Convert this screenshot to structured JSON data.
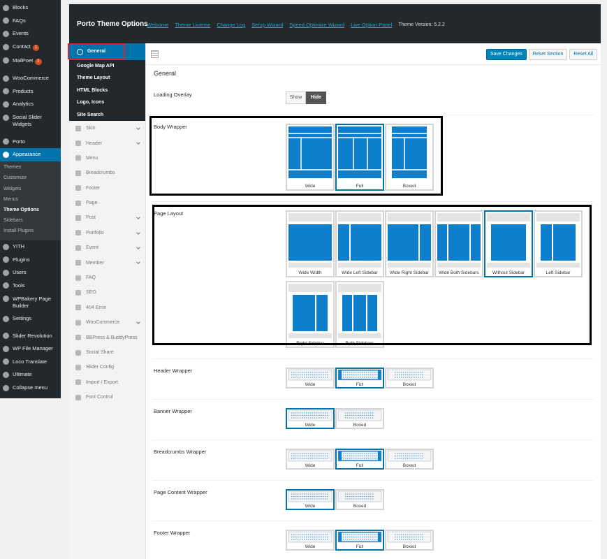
{
  "admin_menu": {
    "items": [
      {
        "label": "Blocks"
      },
      {
        "label": "FAQs"
      },
      {
        "label": "Events"
      },
      {
        "label": "Contact",
        "badge": "1"
      },
      {
        "label": "MailPoet",
        "badge": "1"
      },
      {
        "label": "WooCommerce",
        "group_start": true
      },
      {
        "label": "Products"
      },
      {
        "label": "Analytics"
      },
      {
        "label": "Social Slider Widgets"
      },
      {
        "label": "Porto",
        "group_start": true
      },
      {
        "label": "Appearance",
        "active": true,
        "submenu": [
          {
            "label": "Themes"
          },
          {
            "label": "Customize"
          },
          {
            "label": "Widgets"
          },
          {
            "label": "Menus"
          },
          {
            "label": "Theme Options",
            "current": true
          },
          {
            "label": "Sidebars"
          },
          {
            "label": "Install Plugins"
          }
        ]
      },
      {
        "label": "YITH"
      },
      {
        "label": "Plugins"
      },
      {
        "label": "Users"
      },
      {
        "label": "Tools"
      },
      {
        "label": "WPBakery Page Builder"
      },
      {
        "label": "Settings"
      },
      {
        "label": "Slider Revolution",
        "group_start": true
      },
      {
        "label": "WP File Manager"
      },
      {
        "label": "Loco Translate"
      },
      {
        "label": "Ultimate"
      },
      {
        "label": "Collapse menu"
      }
    ]
  },
  "panel": {
    "title": "Porto Theme Options",
    "links": [
      "Welcome",
      "Theme License",
      "Change Log",
      "Setup Wizard",
      "Speed Optimize Wizard",
      "Live Option Panel"
    ],
    "version": "Theme Version: 5.2.2",
    "nav": {
      "subitems": [
        "General",
        "Google Map API",
        "Theme Layout",
        "HTML Blocks",
        "Logo, Icons",
        "Site Search"
      ],
      "active": 0,
      "items": [
        {
          "label": "Skin",
          "expandable": true
        },
        {
          "label": "Header",
          "expandable": true
        },
        {
          "label": "Menu"
        },
        {
          "label": "Breadcrumbs"
        },
        {
          "label": "Footer"
        },
        {
          "label": "Page"
        },
        {
          "label": "Post",
          "expandable": true
        },
        {
          "label": "Portfolio",
          "expandable": true
        },
        {
          "label": "Event",
          "expandable": true
        },
        {
          "label": "Member",
          "expandable": true
        },
        {
          "label": "FAQ"
        },
        {
          "label": "SEO"
        },
        {
          "label": "404 Error"
        },
        {
          "label": "WooCommerce",
          "expandable": true
        },
        {
          "label": "BBPress & BuddyPress"
        },
        {
          "label": "Social Share"
        },
        {
          "label": "Slider Config"
        },
        {
          "label": "Import / Export"
        },
        {
          "label": "Font Control"
        }
      ]
    },
    "toolbar": {
      "buttons": [
        "Save Changes",
        "Reset Section",
        "Reset All"
      ]
    },
    "content": {
      "heading": "General",
      "sections": [
        {
          "label": "Loading Overlay",
          "buttons": [
            "Show",
            "Hide"
          ],
          "selected": 1
        },
        {
          "label": "Body Wrapper",
          "options": [
            "Wide",
            "Full",
            "Boxed"
          ],
          "selected": 1
        },
        {
          "label": "Page Layout",
          "options": [
            "Wide Width",
            "Wide Left Sidebar",
            "Wide Right Sidebar",
            "Wide Both Sidebars",
            "Without Sidebar",
            "Left Sidebar",
            "Right Sidebar",
            "Both Sidebars"
          ],
          "selected": 4
        },
        {
          "label": "Header Wrapper",
          "options": [
            "Wide",
            "Full",
            "Boxed"
          ],
          "selected": 1
        },
        {
          "label": "Banner Wrapper",
          "options": [
            "Wide",
            "Boxed"
          ],
          "selected": 0
        },
        {
          "label": "Breadcrumbs Wrapper",
          "options": [
            "Wide",
            "Full",
            "Boxed"
          ],
          "selected": 1
        },
        {
          "label": "Page Content Wrapper",
          "options": [
            "Wide",
            "Boxed"
          ],
          "selected": 0
        },
        {
          "label": "Footer Wrapper",
          "options": [
            "Wide",
            "Full",
            "Boxed"
          ],
          "selected": 1
        }
      ]
    }
  }
}
